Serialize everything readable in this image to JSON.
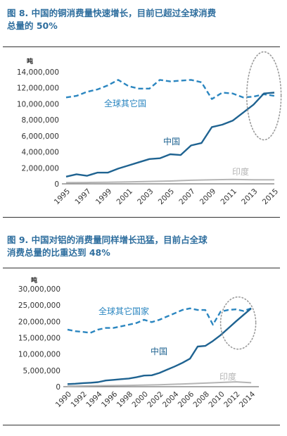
{
  "figures": [
    {
      "title_line1": "图 8. 中国的铜消费量快速增长，目前已超过全球消费",
      "title_line2": "总量的 50%"
    },
    {
      "title_line1": "图 9. 中国对铝的消费量同样增长迅猛，目前占全球",
      "title_line2": "消费总量的比重达到 48%"
    }
  ],
  "colors": {
    "title": "#2e6e9e",
    "china": "#1f6391",
    "rest_of_world": "#2b86c0",
    "india": "#b5b5b5",
    "highlight_circle": "#9a9a9a"
  },
  "chart_data": [
    {
      "type": "line",
      "unit_label": "吨",
      "ylim": [
        0,
        14000000
      ],
      "yticks": [
        0,
        2000000,
        4000000,
        6000000,
        8000000,
        10000000,
        12000000,
        14000000
      ],
      "ytick_labels": [
        "0",
        "2,000,000",
        "4,000,000",
        "6,000,000",
        "8,000,000",
        "10,000,000",
        "12,000,000",
        "14,000,000"
      ],
      "xlim": [
        1995,
        2015
      ],
      "xtick_labels": [
        "1995",
        "1997",
        "1999",
        "2001",
        "2003",
        "2005",
        "2007",
        "2009",
        "2011",
        "2013",
        "2015"
      ],
      "grid": false,
      "highlight": {
        "x_center": 2014,
        "y_center": 11000000,
        "x_span": 3.3,
        "y_span": 11000000
      },
      "series": [
        {
          "name": "全球其它国",
          "style": "dashed",
          "x": [
            1995,
            1996,
            1997,
            1998,
            1999,
            2000,
            2001,
            2002,
            2003,
            2004,
            2005,
            2006,
            2007,
            2008,
            2009,
            2010,
            2011,
            2012,
            2013,
            2014,
            2015
          ],
          "y": [
            10800000,
            11000000,
            11500000,
            11800000,
            12300000,
            13000000,
            12200000,
            11900000,
            11900000,
            13000000,
            12800000,
            12900000,
            13000000,
            12700000,
            10600000,
            11400000,
            11300000,
            10800000,
            10900000,
            11200000,
            11000000
          ]
        },
        {
          "name": "中国",
          "style": "solid",
          "x": [
            1995,
            1996,
            1997,
            1998,
            1999,
            2000,
            2001,
            2002,
            2003,
            2004,
            2005,
            2006,
            2007,
            2008,
            2009,
            2010,
            2011,
            2012,
            2013,
            2014,
            2015
          ],
          "y": [
            900000,
            1200000,
            1000000,
            1400000,
            1400000,
            1900000,
            2300000,
            2700000,
            3100000,
            3200000,
            3700000,
            3600000,
            4800000,
            5100000,
            7100000,
            7400000,
            7900000,
            8900000,
            9900000,
            11300000,
            11400000
          ]
        },
        {
          "name": "印度",
          "style": "solid",
          "x": [
            1995,
            1997,
            1999,
            2001,
            2003,
            2005,
            2007,
            2009,
            2011,
            2013,
            2015
          ],
          "y": [
            150000,
            170000,
            200000,
            250000,
            300000,
            350000,
            450000,
            500000,
            550000,
            500000,
            500000
          ]
        }
      ]
    },
    {
      "type": "line",
      "unit_label": "吨",
      "ylim": [
        0,
        30000000
      ],
      "yticks": [
        0,
        5000000,
        10000000,
        15000000,
        20000000,
        25000000,
        30000000
      ],
      "ytick_labels": [
        "0",
        "5,000,000",
        "10,000,000",
        "15,000,000",
        "20,000,000",
        "25,000,000",
        "30,000,000"
      ],
      "xlim": [
        1990,
        2015
      ],
      "xtick_labels": [
        "1990",
        "1992",
        "1994",
        "1996",
        "1998",
        "2000",
        "2002",
        "2004",
        "2006",
        "2008",
        "2010",
        "2012",
        "2014"
      ],
      "grid": false,
      "highlight": {
        "x_center": 2012.3,
        "y_center": 19500000,
        "x_span": 4.6,
        "y_span": 16000000
      },
      "series": [
        {
          "name": "全球其它国家",
          "style": "dashed",
          "x": [
            1990,
            1991,
            1992,
            1993,
            1994,
            1995,
            1996,
            1997,
            1998,
            1999,
            2000,
            2001,
            2002,
            2003,
            2004,
            2005,
            2006,
            2007,
            2008,
            2009,
            2010,
            2011,
            2012,
            2013,
            2014
          ],
          "y": [
            17500000,
            17000000,
            16800000,
            16500000,
            17500000,
            18000000,
            18000000,
            18500000,
            19000000,
            19500000,
            20500000,
            19800000,
            20500000,
            21500000,
            22500000,
            23500000,
            24000000,
            23500000,
            23500000,
            19000000,
            23000000,
            23500000,
            23700000,
            23200000,
            24000000
          ]
        },
        {
          "name": "中国",
          "style": "solid",
          "x": [
            1990,
            1991,
            1992,
            1993,
            1994,
            1995,
            1996,
            1997,
            1998,
            1999,
            2000,
            2001,
            2002,
            2003,
            2004,
            2005,
            2006,
            2007,
            2008,
            2009,
            2010,
            2011,
            2012,
            2013,
            2014
          ],
          "y": [
            800000,
            900000,
            1100000,
            1200000,
            1400000,
            1900000,
            2100000,
            2300000,
            2500000,
            2900000,
            3400000,
            3500000,
            4200000,
            5200000,
            6200000,
            7300000,
            8600000,
            12300000,
            12500000,
            14000000,
            15800000,
            17900000,
            20000000,
            22000000,
            24000000
          ]
        },
        {
          "name": "印度",
          "style": "solid",
          "x": [
            1990,
            1994,
            1998,
            2002,
            2006,
            2010,
            2012,
            2014
          ],
          "y": [
            200000,
            300000,
            400000,
            600000,
            900000,
            1300000,
            1500000,
            1200000
          ]
        }
      ]
    }
  ]
}
